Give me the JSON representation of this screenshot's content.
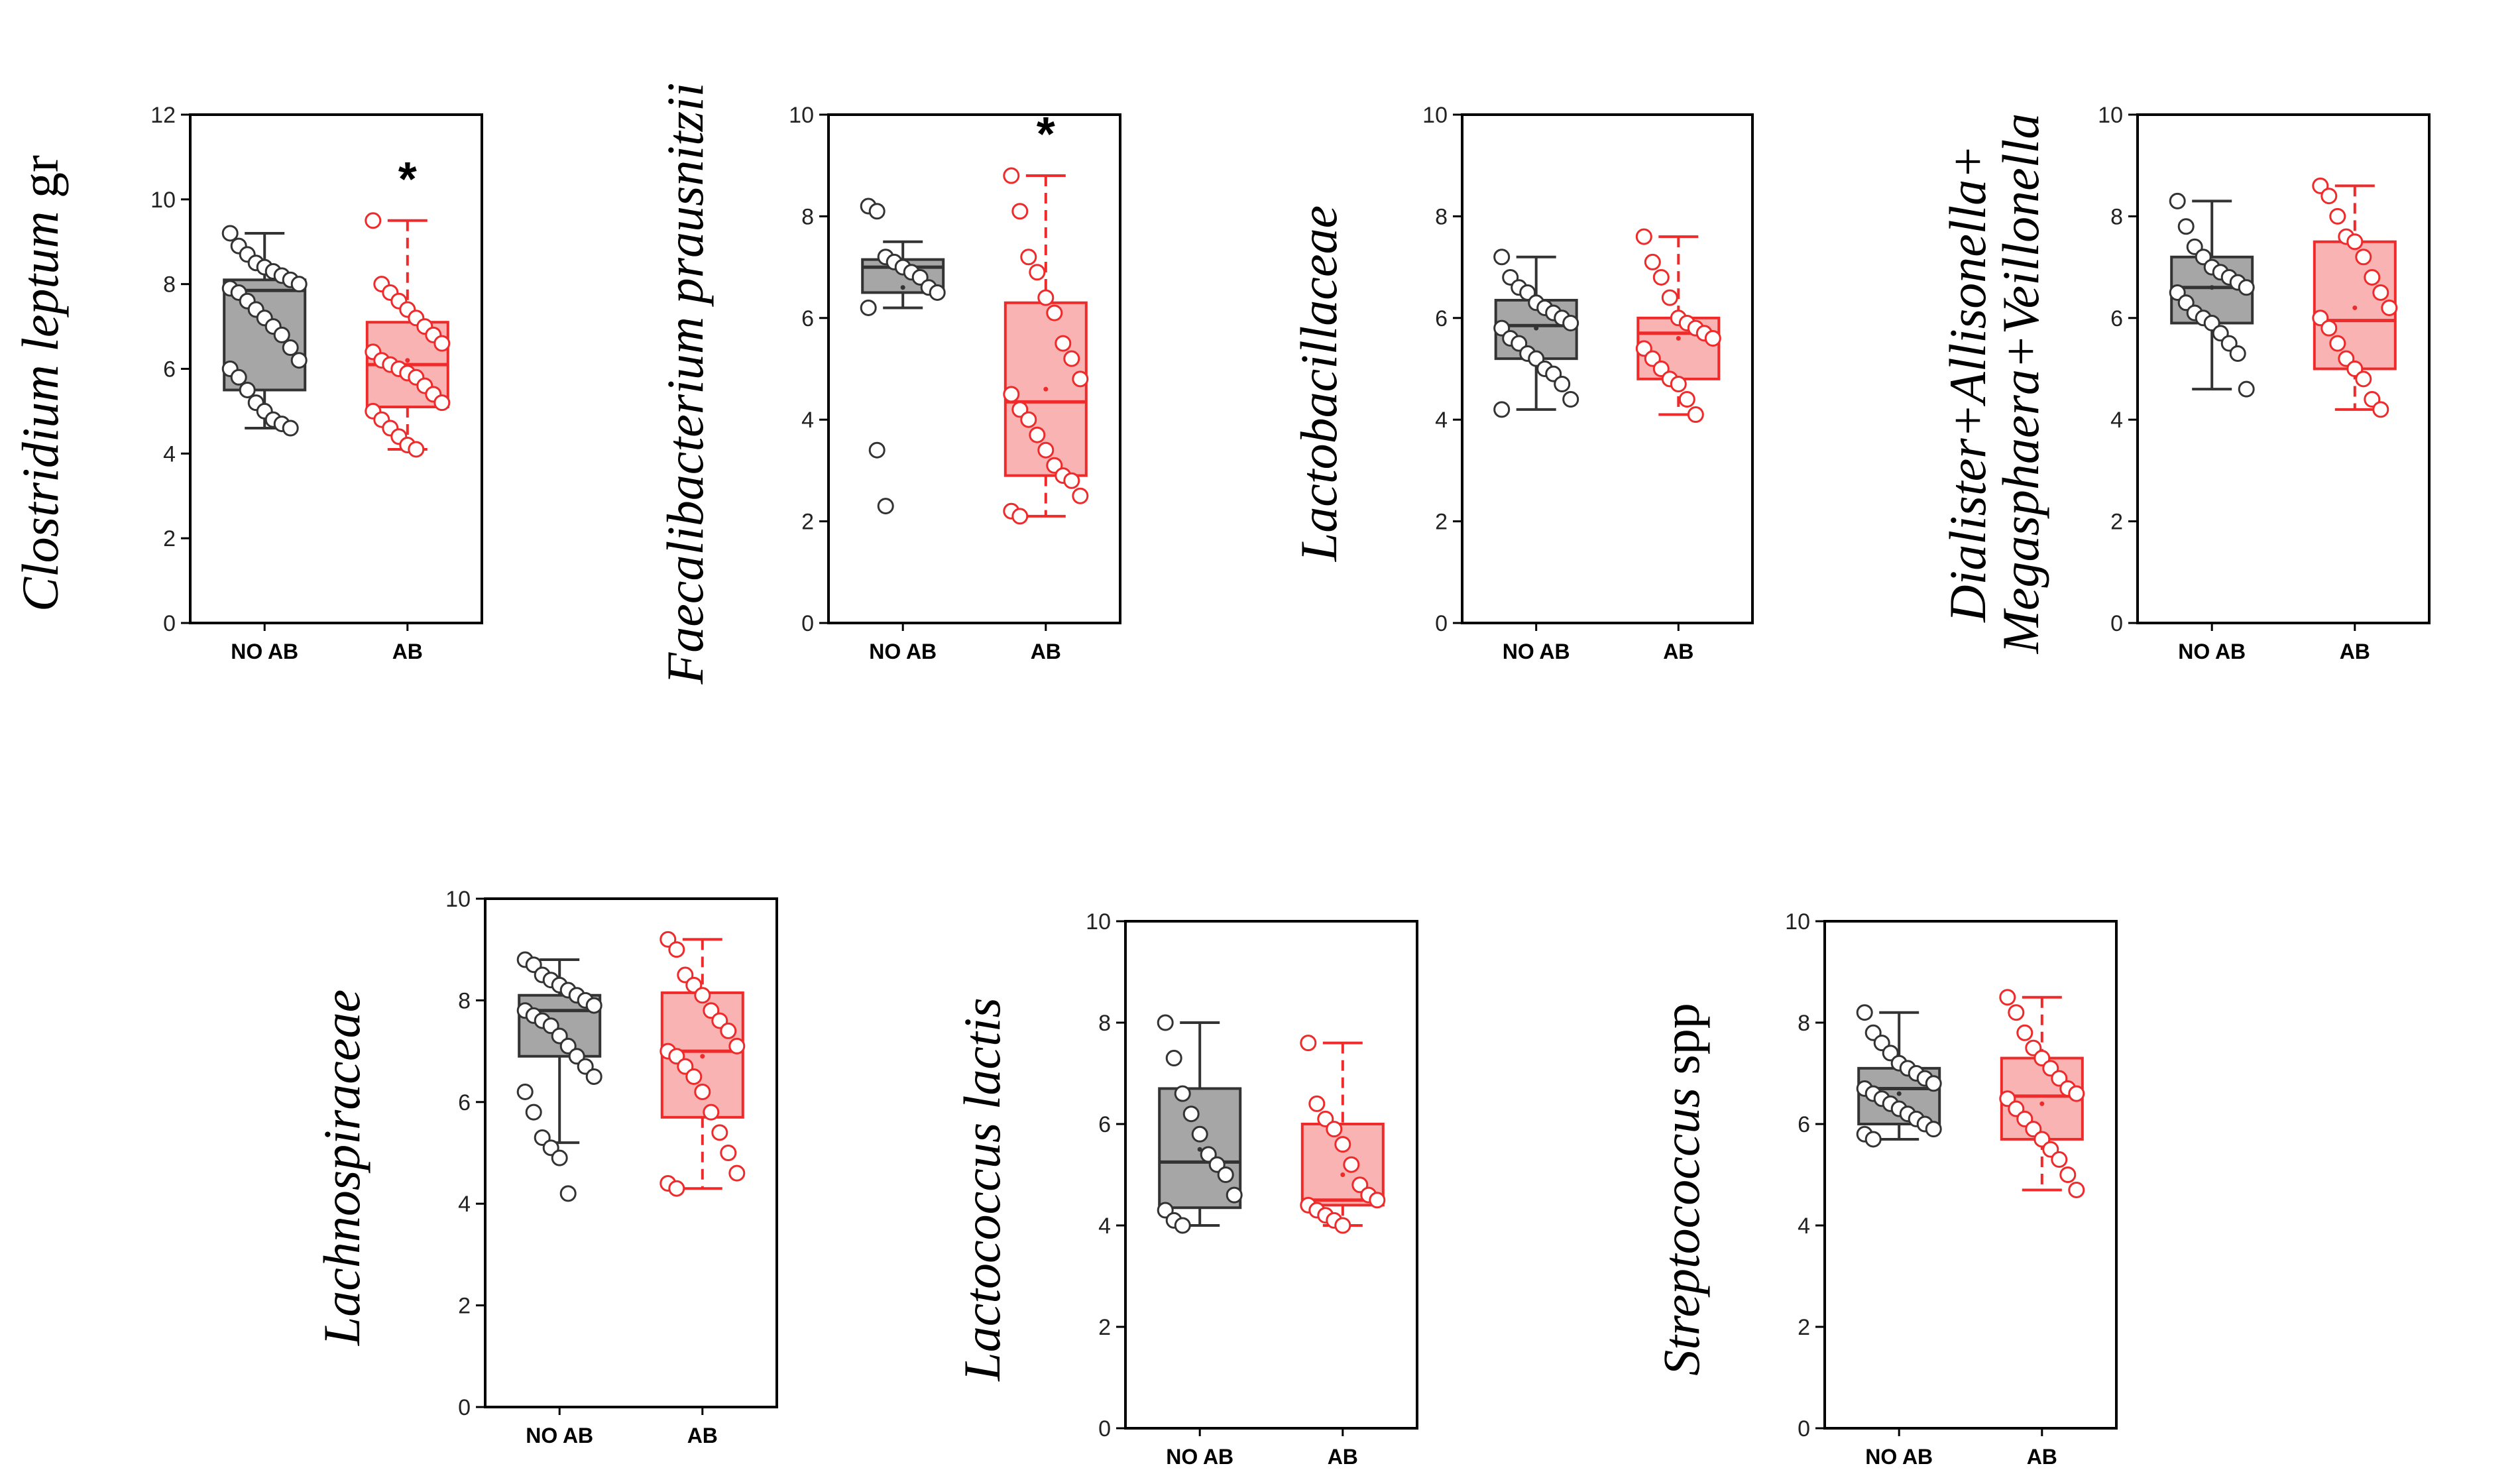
{
  "colors": {
    "no_ab_fill": "#a6a6a6",
    "no_ab_line": "#333333",
    "ab_fill": "#f9b3b3",
    "ab_line": "#ee2a2a",
    "point_fill": "#ffffff"
  },
  "chart_data": [
    {
      "type": "box",
      "ylabel": {
        "italic": "Clostridium leptum",
        "normal": " gr"
      },
      "categories": [
        "NO AB",
        "AB"
      ],
      "ylim": [
        0,
        12
      ],
      "yticks": [
        "0",
        "2",
        "4",
        "6",
        "8",
        "10",
        "12"
      ],
      "annotation": "*",
      "series": [
        {
          "q1": 5.5,
          "median": 7.85,
          "q3": 8.1,
          "whisker_low": 4.6,
          "whisker_high": 9.2,
          "mean": 7.1,
          "points": [
            9.2,
            8.9,
            8.7,
            8.5,
            8.4,
            8.3,
            8.2,
            8.1,
            8.0,
            7.9,
            7.8,
            7.6,
            7.4,
            7.2,
            7.0,
            6.8,
            6.5,
            6.2,
            6.0,
            5.8,
            5.5,
            5.2,
            5.0,
            4.8,
            4.7,
            4.6
          ]
        },
        {
          "q1": 5.1,
          "median": 6.1,
          "q3": 7.1,
          "whisker_low": 4.1,
          "whisker_high": 9.5,
          "mean": 6.2,
          "points": [
            9.5,
            8.0,
            7.8,
            7.6,
            7.4,
            7.2,
            7.0,
            6.8,
            6.6,
            6.4,
            6.2,
            6.1,
            6.0,
            5.9,
            5.8,
            5.6,
            5.4,
            5.2,
            5.0,
            4.8,
            4.6,
            4.4,
            4.2,
            4.1
          ]
        }
      ]
    },
    {
      "type": "box",
      "ylabel": {
        "italic": "Faecalibacterium prausnitzii",
        "normal": ""
      },
      "categories": [
        "NO AB",
        "AB"
      ],
      "ylim": [
        0,
        10
      ],
      "yticks": [
        "0",
        "2",
        "4",
        "6",
        "8",
        "10"
      ],
      "annotation": "*",
      "series": [
        {
          "q1": 6.5,
          "median": 7.0,
          "q3": 7.15,
          "whisker_low": 6.2,
          "whisker_high": 7.5,
          "mean": 6.6,
          "points": [
            8.2,
            8.1,
            7.2,
            7.1,
            7.0,
            6.9,
            6.8,
            6.6,
            6.5,
            6.2,
            3.4,
            2.3
          ]
        },
        {
          "q1": 2.9,
          "median": 4.35,
          "q3": 6.3,
          "whisker_low": 2.1,
          "whisker_high": 8.8,
          "mean": 4.6,
          "points": [
            8.8,
            8.1,
            7.2,
            6.9,
            6.4,
            6.1,
            5.5,
            5.2,
            4.8,
            4.5,
            4.2,
            4.0,
            3.7,
            3.4,
            3.1,
            2.9,
            2.8,
            2.5,
            2.2,
            2.1
          ]
        }
      ]
    },
    {
      "type": "box",
      "ylabel": {
        "italic": "Lactobacillaceae",
        "normal": ""
      },
      "categories": [
        "NO AB",
        "AB"
      ],
      "ylim": [
        0,
        10
      ],
      "yticks": [
        "0",
        "2",
        "4",
        "6",
        "8",
        "10"
      ],
      "annotation": "",
      "series": [
        {
          "q1": 5.2,
          "median": 5.85,
          "q3": 6.35,
          "whisker_low": 4.2,
          "whisker_high": 7.2,
          "mean": 5.8,
          "points": [
            7.2,
            6.8,
            6.6,
            6.5,
            6.3,
            6.2,
            6.1,
            6.0,
            5.9,
            5.8,
            5.6,
            5.5,
            5.3,
            5.2,
            5.0,
            4.9,
            4.7,
            4.4,
            4.2
          ]
        },
        {
          "q1": 4.8,
          "median": 5.7,
          "q3": 6.0,
          "whisker_low": 4.1,
          "whisker_high": 7.6,
          "mean": 5.6,
          "points": [
            7.6,
            7.1,
            6.8,
            6.4,
            6.0,
            5.9,
            5.8,
            5.7,
            5.6,
            5.4,
            5.2,
            5.0,
            4.8,
            4.7,
            4.4,
            4.1
          ]
        }
      ]
    },
    {
      "type": "box",
      "ylabel": {
        "line1": "Dialister+Allisonella+",
        "line2": "Megasphaera+Veillonella"
      },
      "categories": [
        "NO AB",
        "AB"
      ],
      "ylim": [
        0,
        10
      ],
      "yticks": [
        "0",
        "2",
        "4",
        "6",
        "8",
        "10"
      ],
      "annotation": "",
      "series": [
        {
          "q1": 5.9,
          "median": 6.6,
          "q3": 7.2,
          "whisker_low": 4.6,
          "whisker_high": 8.3,
          "mean": 6.6,
          "points": [
            8.3,
            7.8,
            7.4,
            7.2,
            7.0,
            6.9,
            6.8,
            6.7,
            6.6,
            6.5,
            6.3,
            6.1,
            6.0,
            5.9,
            5.7,
            5.5,
            5.3,
            4.6
          ]
        },
        {
          "q1": 5.0,
          "median": 5.95,
          "q3": 7.5,
          "whisker_low": 4.2,
          "whisker_high": 8.6,
          "mean": 6.2,
          "points": [
            8.6,
            8.4,
            8.0,
            7.6,
            7.5,
            7.2,
            6.8,
            6.5,
            6.2,
            6.0,
            5.8,
            5.5,
            5.2,
            5.0,
            4.8,
            4.4,
            4.2
          ]
        }
      ]
    },
    {
      "type": "box",
      "ylabel": {
        "italic": "Lachnospiraceae",
        "normal": ""
      },
      "categories": [
        "NO AB",
        "AB"
      ],
      "ylim": [
        0,
        10
      ],
      "yticks": [
        "0",
        "2",
        "4",
        "6",
        "8",
        "10"
      ],
      "annotation": "",
      "series": [
        {
          "q1": 6.9,
          "median": 7.8,
          "q3": 8.1,
          "whisker_low": 5.2,
          "whisker_high": 8.8,
          "mean": 7.3,
          "points": [
            8.8,
            8.7,
            8.5,
            8.4,
            8.3,
            8.2,
            8.1,
            8.0,
            7.9,
            7.8,
            7.7,
            7.6,
            7.5,
            7.3,
            7.1,
            6.9,
            6.7,
            6.5,
            6.2,
            5.8,
            5.3,
            5.1,
            4.9,
            4.2
          ]
        },
        {
          "q1": 5.7,
          "median": 7.0,
          "q3": 8.15,
          "whisker_low": 4.3,
          "whisker_high": 9.2,
          "mean": 6.9,
          "points": [
            9.2,
            9.0,
            8.5,
            8.3,
            8.1,
            7.8,
            7.6,
            7.4,
            7.1,
            7.0,
            6.9,
            6.7,
            6.5,
            6.2,
            5.8,
            5.4,
            5.0,
            4.6,
            4.4,
            4.3
          ]
        }
      ]
    },
    {
      "type": "box",
      "ylabel": {
        "italic": "Lactococcus lactis",
        "normal": ""
      },
      "categories": [
        "NO AB",
        "AB"
      ],
      "ylim": [
        0,
        10
      ],
      "yticks": [
        "0",
        "2",
        "4",
        "6",
        "8",
        "10"
      ],
      "annotation": "",
      "series": [
        {
          "q1": 4.35,
          "median": 5.25,
          "q3": 6.7,
          "whisker_low": 4.0,
          "whisker_high": 8.0,
          "mean": 5.5,
          "points": [
            8.0,
            7.3,
            6.6,
            6.2,
            5.8,
            5.4,
            5.2,
            5.0,
            4.6,
            4.3,
            4.1,
            4.0
          ]
        },
        {
          "q1": 4.4,
          "median": 4.5,
          "q3": 6.0,
          "whisker_low": 4.0,
          "whisker_high": 7.6,
          "mean": 5.0,
          "points": [
            7.6,
            6.4,
            6.1,
            5.9,
            5.6,
            5.2,
            4.8,
            4.6,
            4.5,
            4.4,
            4.3,
            4.2,
            4.1,
            4.0
          ]
        }
      ]
    },
    {
      "type": "box",
      "ylabel": {
        "italic": "Streptococcus",
        "normal": " spp"
      },
      "categories": [
        "NO AB",
        "AB"
      ],
      "ylim": [
        0,
        10
      ],
      "yticks": [
        "0",
        "2",
        "4",
        "6",
        "8",
        "10"
      ],
      "annotation": "",
      "series": [
        {
          "q1": 6.0,
          "median": 6.7,
          "q3": 7.1,
          "whisker_low": 5.7,
          "whisker_high": 8.2,
          "mean": 6.6,
          "points": [
            8.2,
            7.8,
            7.6,
            7.4,
            7.2,
            7.1,
            7.0,
            6.9,
            6.8,
            6.7,
            6.6,
            6.5,
            6.4,
            6.3,
            6.2,
            6.1,
            6.0,
            5.9,
            5.8,
            5.7
          ]
        },
        {
          "q1": 5.7,
          "median": 6.55,
          "q3": 7.3,
          "whisker_low": 4.7,
          "whisker_high": 8.5,
          "mean": 6.4,
          "points": [
            8.5,
            8.2,
            7.8,
            7.5,
            7.3,
            7.1,
            6.9,
            6.7,
            6.6,
            6.5,
            6.3,
            6.1,
            5.9,
            5.7,
            5.5,
            5.3,
            5.0,
            4.7
          ]
        }
      ]
    }
  ]
}
